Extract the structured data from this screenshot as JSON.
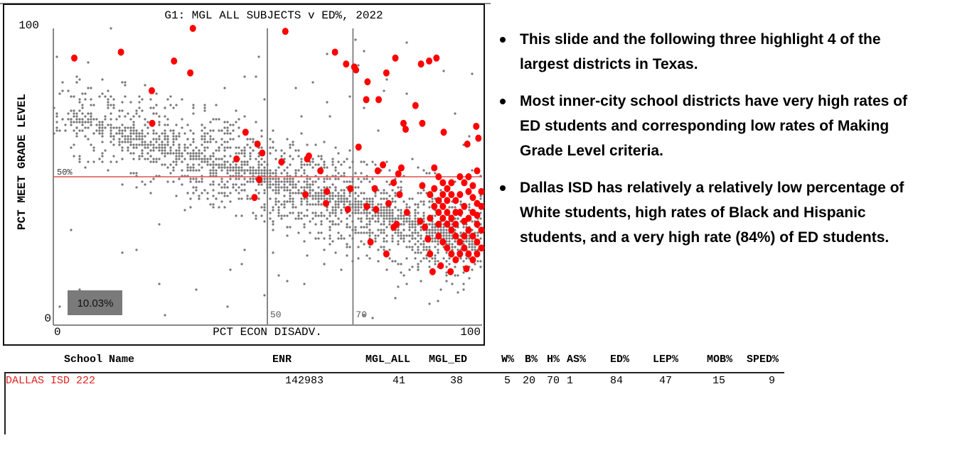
{
  "chart_data": {
    "type": "scatter",
    "title": "G1: MGL ALL SUBJECTS v ED%, 2022",
    "xlabel": "PCT ECON DISADV.",
    "ylabel": "PCT MEET GRADE LEVEL",
    "xlim": [
      0,
      100
    ],
    "ylim": [
      0,
      100
    ],
    "x_ticks": [
      "0",
      "100"
    ],
    "y_ticks": [
      "0",
      "100"
    ],
    "reference_lines": {
      "horizontal": {
        "value": 50,
        "label": "50%",
        "color": "#e05050"
      },
      "vertical": [
        {
          "value": 50,
          "label": "50"
        },
        {
          "value": 70,
          "label": "70"
        }
      ]
    },
    "annotation_box": "10.03%",
    "colors": {
      "all": "#777777",
      "highlight": "#ff0000",
      "box": "#7a7a7a"
    },
    "background_series": {
      "name": "all",
      "count": 2400,
      "trend_intercept": 72,
      "trend_slope": -0.45,
      "spread": 11
    },
    "highlight_series": {
      "name": "DALLAS ISD",
      "points": [
        [
          4.9,
          90
        ],
        [
          15.8,
          92
        ],
        [
          32.6,
          100
        ],
        [
          28.2,
          89
        ],
        [
          32,
          85
        ],
        [
          23,
          79
        ],
        [
          23.1,
          68
        ],
        [
          54.2,
          99
        ],
        [
          65.8,
          92
        ],
        [
          68.4,
          88
        ],
        [
          70.3,
          87
        ],
        [
          70.7,
          86
        ],
        [
          79.9,
          90
        ],
        [
          77.8,
          85
        ],
        [
          73.4,
          82
        ],
        [
          73.1,
          76
        ],
        [
          76,
          76
        ],
        [
          85.9,
          88
        ],
        [
          87.8,
          89
        ],
        [
          89.5,
          90
        ],
        [
          84.6,
          74
        ],
        [
          81.8,
          68
        ],
        [
          82.3,
          66
        ],
        [
          86.2,
          68
        ],
        [
          91.2,
          65
        ],
        [
          98.8,
          67
        ],
        [
          99.3,
          63
        ],
        [
          96.7,
          61
        ],
        [
          44.9,
          65
        ],
        [
          47.7,
          61
        ],
        [
          48.8,
          58
        ],
        [
          42.8,
          56
        ],
        [
          53.3,
          55
        ],
        [
          59.7,
          57
        ],
        [
          59.3,
          56
        ],
        [
          71.3,
          60
        ],
        [
          62.4,
          52
        ],
        [
          77,
          54
        ],
        [
          75.8,
          52
        ],
        [
          48.1,
          49
        ],
        [
          47,
          43
        ],
        [
          58.9,
          44
        ],
        [
          63.9,
          45
        ],
        [
          63.7,
          41
        ],
        [
          69.4,
          46
        ],
        [
          68.8,
          39
        ],
        [
          75.1,
          46
        ],
        [
          73.2,
          40
        ],
        [
          75.4,
          39
        ],
        [
          81.3,
          53
        ],
        [
          80.6,
          51
        ],
        [
          79.5,
          48
        ],
        [
          80.9,
          44
        ],
        [
          78.3,
          41
        ],
        [
          82.6,
          38
        ],
        [
          80.2,
          34
        ],
        [
          79.5,
          33
        ],
        [
          74.1,
          28
        ],
        [
          77.8,
          24
        ],
        [
          86.2,
          47
        ],
        [
          85.7,
          35
        ],
        [
          86.8,
          33
        ],
        [
          87.5,
          29
        ],
        [
          88,
          24
        ],
        [
          88.6,
          18
        ],
        [
          90.5,
          20
        ],
        [
          92.8,
          18
        ],
        [
          96.5,
          19
        ],
        [
          99,
          52
        ],
        [
          100,
          40
        ],
        [
          100,
          26
        ],
        [
          89,
          53
        ],
        [
          90,
          50
        ],
        [
          91,
          48
        ],
        [
          92,
          46
        ],
        [
          93,
          44
        ],
        [
          94,
          42
        ],
        [
          95,
          50
        ],
        [
          96,
          48
        ],
        [
          97,
          45
        ],
        [
          98,
          43
        ],
        [
          99,
          41
        ],
        [
          89,
          40
        ],
        [
          90,
          38
        ],
        [
          91,
          36
        ],
        [
          92,
          34
        ],
        [
          93,
          32
        ],
        [
          94,
          30
        ],
        [
          95,
          28
        ],
        [
          96,
          26
        ],
        [
          97,
          24
        ],
        [
          98,
          30
        ],
        [
          99,
          34
        ],
        [
          88,
          44
        ],
        [
          89,
          46
        ],
        [
          90,
          42
        ],
        [
          91,
          40
        ],
        [
          92,
          38
        ],
        [
          93,
          36
        ],
        [
          94,
          34
        ],
        [
          95,
          38
        ],
        [
          96,
          40
        ],
        [
          97,
          36
        ],
        [
          98,
          38
        ],
        [
          99,
          28
        ],
        [
          90,
          30
        ],
        [
          91,
          28
        ],
        [
          92,
          26
        ],
        [
          93,
          24
        ],
        [
          94,
          22
        ],
        [
          95,
          24
        ],
        [
          96,
          30
        ],
        [
          97,
          32
        ],
        [
          98,
          22
        ],
        [
          99,
          24
        ],
        [
          100,
          32
        ],
        [
          91,
          44
        ],
        [
          93,
          48
        ],
        [
          95,
          44
        ],
        [
          97,
          50
        ],
        [
          98,
          47
        ],
        [
          96,
          35
        ],
        [
          94,
          38
        ],
        [
          92,
          42
        ],
        [
          90,
          34
        ],
        [
          88,
          36
        ],
        [
          100,
          45
        ],
        [
          99,
          37
        ]
      ]
    }
  },
  "bullets": [
    "This slide and the following three highlight 4 of the largest districts in Texas.",
    "Most inner-city school districts have very high rates of ED students and corresponding low rates of Making Grade Level criteria.",
    "Dallas ISD has relatively a relatively low percentage of White students, high rates of Black and Hispanic students, and a very high rate (84%) of ED students."
  ],
  "table": {
    "headers": [
      "School Name",
      "ENR",
      "MGL_ALL",
      "MGL_ED",
      "W%",
      "B%",
      "H%",
      "AS%",
      "ED%",
      "LEP%",
      "MOB%",
      "SPED%"
    ],
    "rows": [
      {
        "name": "DALLAS ISD 222",
        "ENR": "142983",
        "MGL_ALL": "41",
        "MGL_ED": "38",
        "W": "5",
        "B": "20",
        "H": "70",
        "AS": "1",
        "ED": "84",
        "LEP": "47",
        "MOB": "15",
        "SPED": "9"
      }
    ]
  }
}
